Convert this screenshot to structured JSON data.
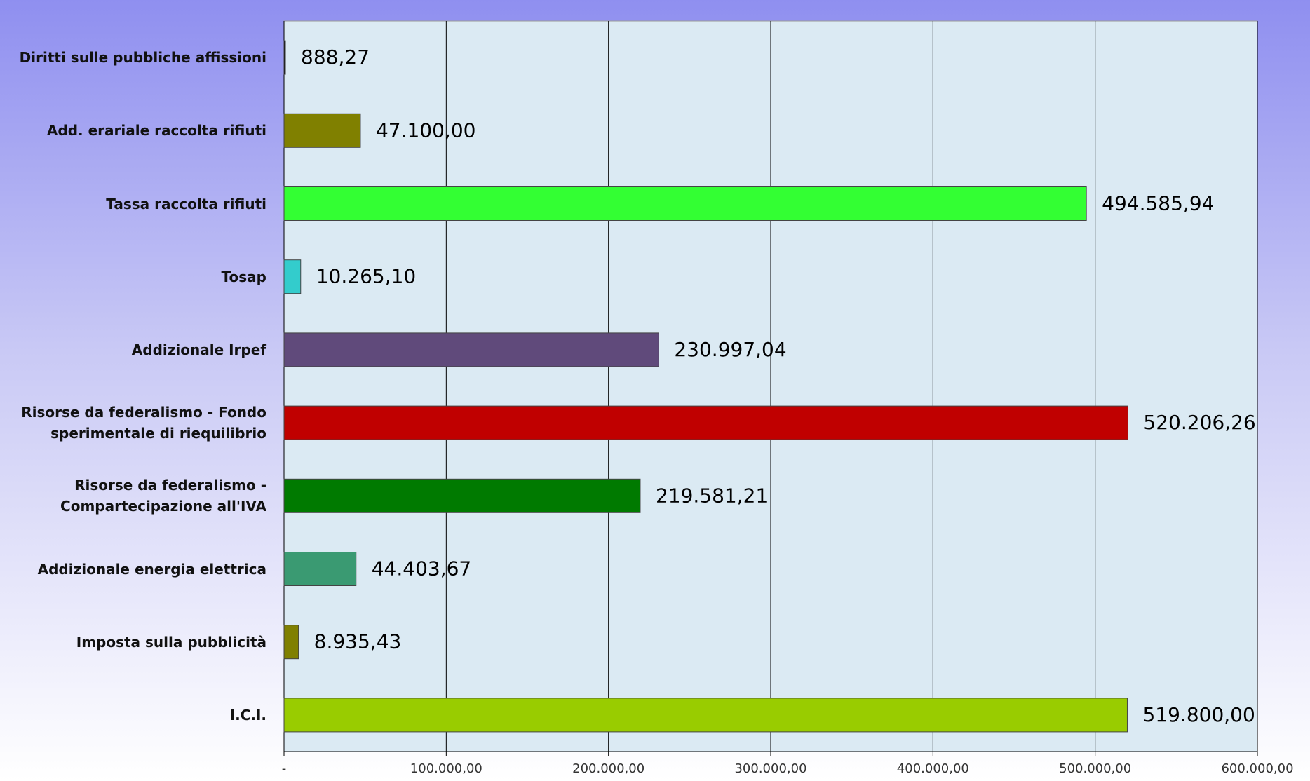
{
  "chart_data": {
    "type": "bar",
    "orientation": "horizontal",
    "categories": [
      "Diritti sulle pubbliche affissioni",
      "Add. erariale raccolta rifiuti",
      "Tassa raccolta rifiuti",
      "Tosap",
      "Addizionale Irpef",
      "Risorse da federalismo - Fondo sperimentale di riequilibrio",
      "Risorse da federalismo - Compartecipazione all'IVA",
      "Addizionale energia elettrica",
      "Imposta sulla pubblicità",
      "I.C.I."
    ],
    "values": [
      888.27,
      47100,
      494585.94,
      10265.1,
      230997.04,
      520206.26,
      219581.21,
      44403.67,
      8935.43,
      519800
    ],
    "value_labels": [
      "888,27",
      "47.100,00",
      "494.585,94",
      "10.265,10",
      "230.997,04",
      "520.206,26",
      "219.581,21",
      "44.403,67",
      "8.935,43",
      "519.800,00"
    ],
    "colors": [
      "#000000",
      "#808000",
      "#33ff33",
      "#33cccc",
      "#604a7b",
      "#c00000",
      "#007a00",
      "#3a9a72",
      "#808000",
      "#99cc00"
    ],
    "xlim": [
      0,
      600000
    ],
    "xticks": [
      {
        "value": 0,
        "label": "-"
      },
      {
        "value": 100000,
        "label": "100.000,00"
      },
      {
        "value": 200000,
        "label": "200.000,00"
      },
      {
        "value": 300000,
        "label": "300.000,00"
      },
      {
        "value": 400000,
        "label": "400.000,00"
      },
      {
        "value": 500000,
        "label": "500.000,00"
      },
      {
        "value": 600000,
        "label": "600.000,00"
      }
    ],
    "grid": true
  }
}
